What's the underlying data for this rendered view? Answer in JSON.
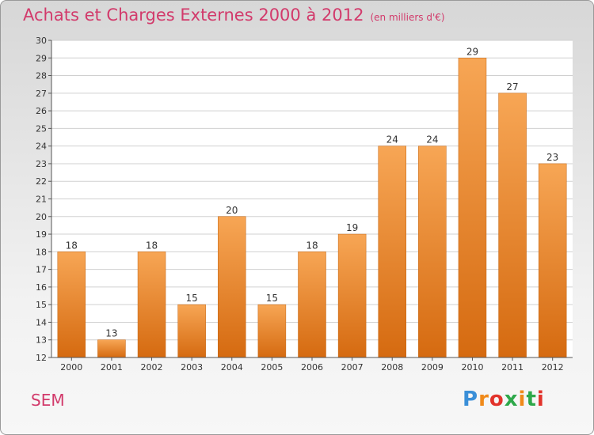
{
  "title": {
    "main": "Achats et Charges Externes 2000 à 2012",
    "unit": "(en milliers d'€)"
  },
  "entity_label": "SEM",
  "logo": {
    "text": "Proxiti",
    "letter_colors": [
      "#3a8fd8",
      "#f08a1a",
      "#e2332b",
      "#2ea84a",
      "#f08a1a",
      "#2ea84a",
      "#e2332b"
    ]
  },
  "colors": {
    "bar_top": "#f7a655",
    "bar_bottom": "#d56a10",
    "title": "#d23a6b"
  },
  "chart_data": {
    "type": "bar",
    "categories": [
      "2000",
      "2001",
      "2002",
      "2003",
      "2004",
      "2005",
      "2006",
      "2007",
      "2008",
      "2009",
      "2010",
      "2011",
      "2012"
    ],
    "values": [
      18,
      13,
      18,
      15,
      20,
      15,
      18,
      19,
      24,
      24,
      29,
      27,
      23
    ],
    "ylim": [
      12,
      30
    ],
    "yticks": [
      12,
      13,
      14,
      15,
      16,
      17,
      18,
      19,
      20,
      21,
      22,
      23,
      24,
      25,
      26,
      27,
      28,
      29,
      30
    ],
    "grid": true
  }
}
